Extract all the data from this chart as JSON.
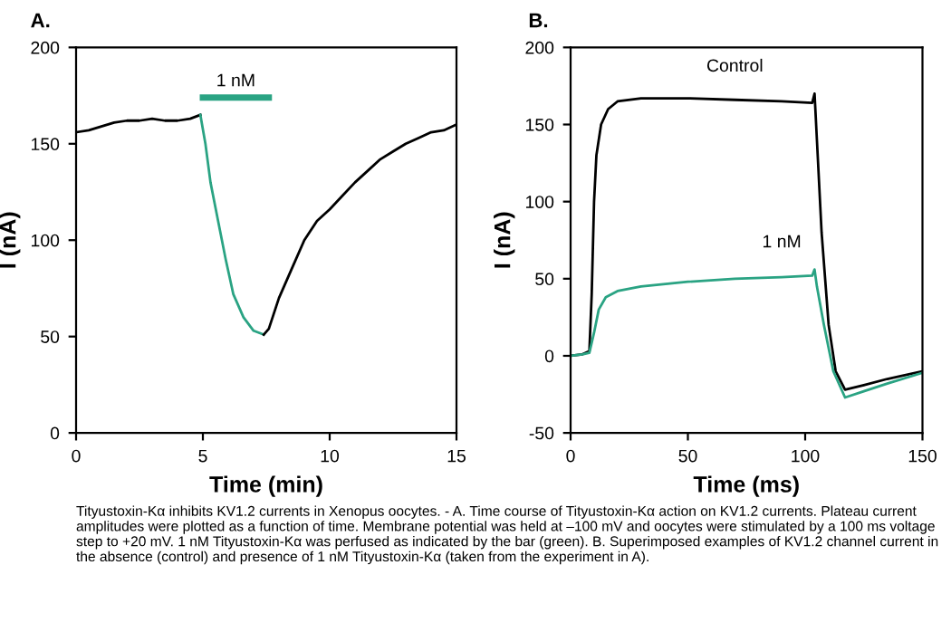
{
  "chart_data": [
    {
      "type": "line",
      "title": "A.",
      "xlabel": "Time (min)",
      "ylabel": "I (nA)",
      "xlim": [
        0,
        15
      ],
      "ylim": [
        0,
        200
      ],
      "xticks": [
        0,
        5,
        10,
        15
      ],
      "yticks": [
        0,
        50,
        100,
        150,
        200
      ],
      "grid": false,
      "legend": false,
      "series": [
        {
          "color": "#000000",
          "x": [
            0,
            0.5,
            1,
            1.5,
            2,
            2.5,
            3,
            3.5,
            4,
            4.5,
            4.9
          ],
          "values": [
            156,
            157,
            159,
            161,
            162,
            162,
            163,
            162,
            162,
            163,
            165
          ]
        },
        {
          "color": "#2aa383",
          "x": [
            4.9,
            5.1,
            5.3,
            5.6,
            5.9,
            6.2,
            6.6,
            7,
            7.4
          ],
          "values": [
            165,
            150,
            130,
            110,
            90,
            72,
            60,
            53,
            51
          ]
        },
        {
          "color": "#000000",
          "x": [
            7.4,
            7.6,
            8,
            8.5,
            9,
            9.5,
            10,
            10.5,
            11,
            11.5,
            12,
            12.5,
            13,
            13.5,
            14,
            14.5,
            15
          ],
          "values": [
            51,
            54,
            70,
            85,
            100,
            110,
            116,
            123,
            130,
            136,
            142,
            146,
            150,
            153,
            156,
            157,
            160
          ]
        },
        {
          "name": "1 nM",
          "color": "#2aa383",
          "x": [
            5,
            7.6
          ],
          "values": [
            174,
            174
          ]
        }
      ],
      "annotations": [
        "Tityustoxin-Kα inhibits KV1.2 currents in Xenopus oocytes. - A. Time course of Tityustoxin-Kα action on KV1.2 currents. Plateau current amplitudes were plotted as a function of time. Membrane potential was held at –100 mV and oocytes were stimulated by a 100 ms voltage step to +20 mV. 1 nM Tityustoxin-Kα was perfused as indicated by the bar (green). B. Superimposed examples of KV1.2 channel current in the absence (control) and presence of 1 nM Tityustoxin-Kα (taken from the experiment in A)."
      ]
    },
    {
      "type": "line",
      "title": "B.",
      "xlabel": "Time (ms)",
      "ylabel": "I (nA)",
      "xlim": [
        0,
        150
      ],
      "ylim": [
        -50,
        200
      ],
      "xticks": [
        0,
        50,
        100,
        150
      ],
      "yticks": [
        -50,
        0,
        50,
        100,
        150,
        200
      ],
      "grid": false,
      "legend": false,
      "series": [
        {
          "name": "Control",
          "color": "#000000",
          "x": [
            0,
            5,
            8,
            9,
            10,
            11,
            13,
            16,
            20,
            30,
            50,
            70,
            90,
            103,
            104,
            105,
            107,
            110,
            113,
            117,
            125,
            135,
            150
          ],
          "values": [
            0,
            1,
            3,
            40,
            100,
            130,
            150,
            160,
            165,
            167,
            167,
            166,
            165,
            164,
            170,
            140,
            80,
            20,
            -10,
            -22,
            -19,
            -15,
            -10
          ]
        },
        {
          "name": "1 nM",
          "color": "#2aa383",
          "x": [
            0,
            5,
            8,
            10,
            12,
            15,
            20,
            30,
            50,
            70,
            90,
            103,
            104,
            105,
            108,
            112,
            117,
            125,
            135,
            150
          ],
          "values": [
            0,
            1,
            2,
            15,
            30,
            38,
            42,
            45,
            48,
            50,
            51,
            52,
            56,
            45,
            20,
            -10,
            -27,
            -23,
            -18,
            -11
          ]
        }
      ]
    }
  ]
}
